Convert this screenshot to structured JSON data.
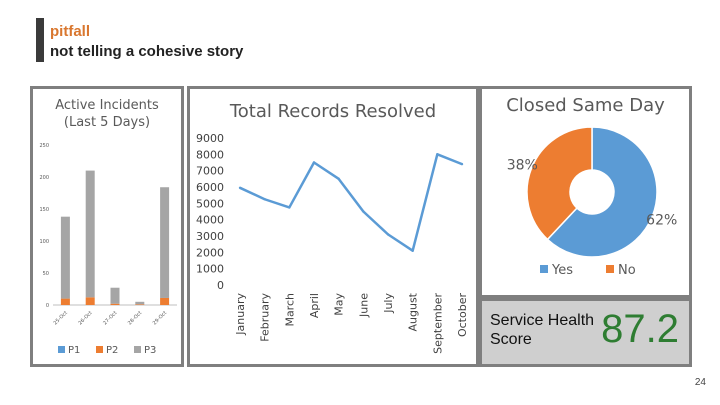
{
  "slide": {
    "title": "pitfall",
    "subtitle": "not telling a cohesive story",
    "page_number": "24"
  },
  "colors": {
    "accent": "#d9772f",
    "blue": "#5b9bd5",
    "orange": "#ed7d31",
    "gray": "#a5a5a5",
    "green": "#2e7d32"
  },
  "score": {
    "label": "Service Health Score",
    "value": "87.2"
  },
  "chart_data": [
    {
      "type": "bar",
      "stacked": true,
      "title": "Active Incidents (Last 5 Days)",
      "categories": [
        "25-Oct",
        "26-Oct",
        "27-Oct",
        "28-Oct",
        "29-Oct"
      ],
      "y_ticks": [
        "0",
        "50",
        "100",
        "150",
        "200",
        "250"
      ],
      "ylim": [
        0,
        250
      ],
      "series": [
        {
          "name": "P1",
          "color": "#5b9bd5",
          "values": [
            0,
            0,
            0,
            0,
            0
          ]
        },
        {
          "name": "P2",
          "color": "#ed7d31",
          "values": [
            10,
            12,
            2,
            1,
            11
          ]
        },
        {
          "name": "P3",
          "color": "#a5a5a5",
          "values": [
            128,
            198,
            25,
            4,
            173
          ]
        }
      ],
      "legend": "bottom"
    },
    {
      "type": "line",
      "title": "Total Records Resolved",
      "categories": [
        "January",
        "February",
        "March",
        "April",
        "May",
        "June",
        "July",
        "August",
        "September",
        "October"
      ],
      "y_ticks": [
        "0",
        "1000",
        "2000",
        "3000",
        "4000",
        "5000",
        "6000",
        "7000",
        "8000",
        "9000"
      ],
      "ylim": [
        0,
        9000
      ],
      "series": [
        {
          "color": "#5b9bd5",
          "values": [
            5950,
            5250,
            4750,
            7500,
            6500,
            4500,
            3100,
            2100,
            8000,
            7400
          ]
        }
      ],
      "grid": false
    },
    {
      "type": "pie",
      "donut": true,
      "title": "Closed Same Day",
      "slices": [
        {
          "name": "Yes",
          "value": 62,
          "label": "62%",
          "color": "#5b9bd5"
        },
        {
          "name": "No",
          "value": 38,
          "label": "38%",
          "color": "#ed7d31"
        }
      ],
      "legend": "bottom"
    }
  ]
}
